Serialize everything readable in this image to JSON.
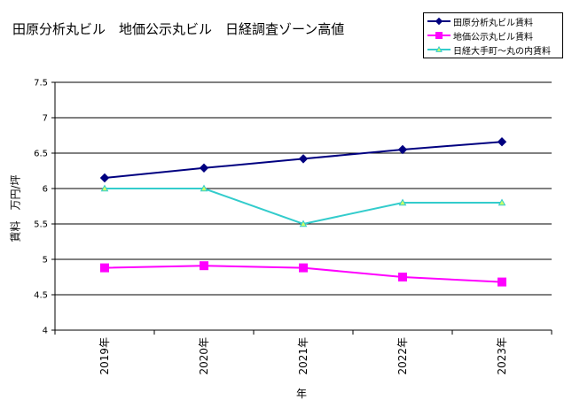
{
  "chart_data": {
    "type": "line",
    "title": "田原分析丸ビル　地価公示丸ビル　日経調査ゾーン高値",
    "xlabel": "年",
    "ylabel": "賃料　万円/坪",
    "categories": [
      "2019年",
      "2020年",
      "2021年",
      "2022年",
      "2023年"
    ],
    "ylim": [
      4,
      7.5
    ],
    "yticks": [
      "4",
      "4.5",
      "5",
      "5.5",
      "6",
      "6.5",
      "7",
      "7.5"
    ],
    "grid": true,
    "legend_position": "top-right",
    "series": [
      {
        "name": "田原分析丸ビル賃料",
        "values": [
          6.15,
          6.29,
          6.42,
          6.55,
          6.66
        ],
        "color": "#000080",
        "marker": "diamond"
      },
      {
        "name": "地価公示丸ビル賃料",
        "values": [
          4.88,
          4.91,
          4.88,
          4.75,
          4.68
        ],
        "color": "#ff00ff",
        "marker": "square"
      },
      {
        "name": "日経大手町～丸の内賃料",
        "values": [
          6.0,
          6.0,
          5.5,
          5.8,
          5.8
        ],
        "color": "#33cccc",
        "marker": "triangle",
        "marker_fill": "#ccff66"
      }
    ]
  }
}
